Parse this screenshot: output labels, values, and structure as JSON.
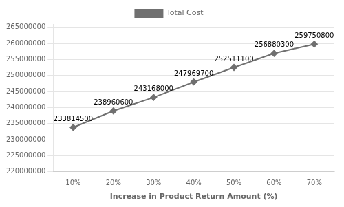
{
  "chart_data": {
    "type": "line",
    "categories": [
      "10%",
      "20%",
      "30%",
      "40%",
      "50%",
      "60%",
      "70%"
    ],
    "series": [
      {
        "name": "Total Cost",
        "color": "#707070",
        "marker": "diamond",
        "values": [
          233814500,
          238960600,
          243168000,
          247969700,
          252511100,
          256880300,
          259750800
        ]
      }
    ],
    "xlabel": "Increase in Product Return Amount (%)",
    "ylim": [
      220000000,
      266000000
    ],
    "yticks": [
      220000000,
      225000000,
      230000000,
      235000000,
      240000000,
      245000000,
      250000000,
      255000000,
      260000000,
      265000000
    ],
    "grid": true,
    "data_labels": true,
    "legend": "top"
  }
}
